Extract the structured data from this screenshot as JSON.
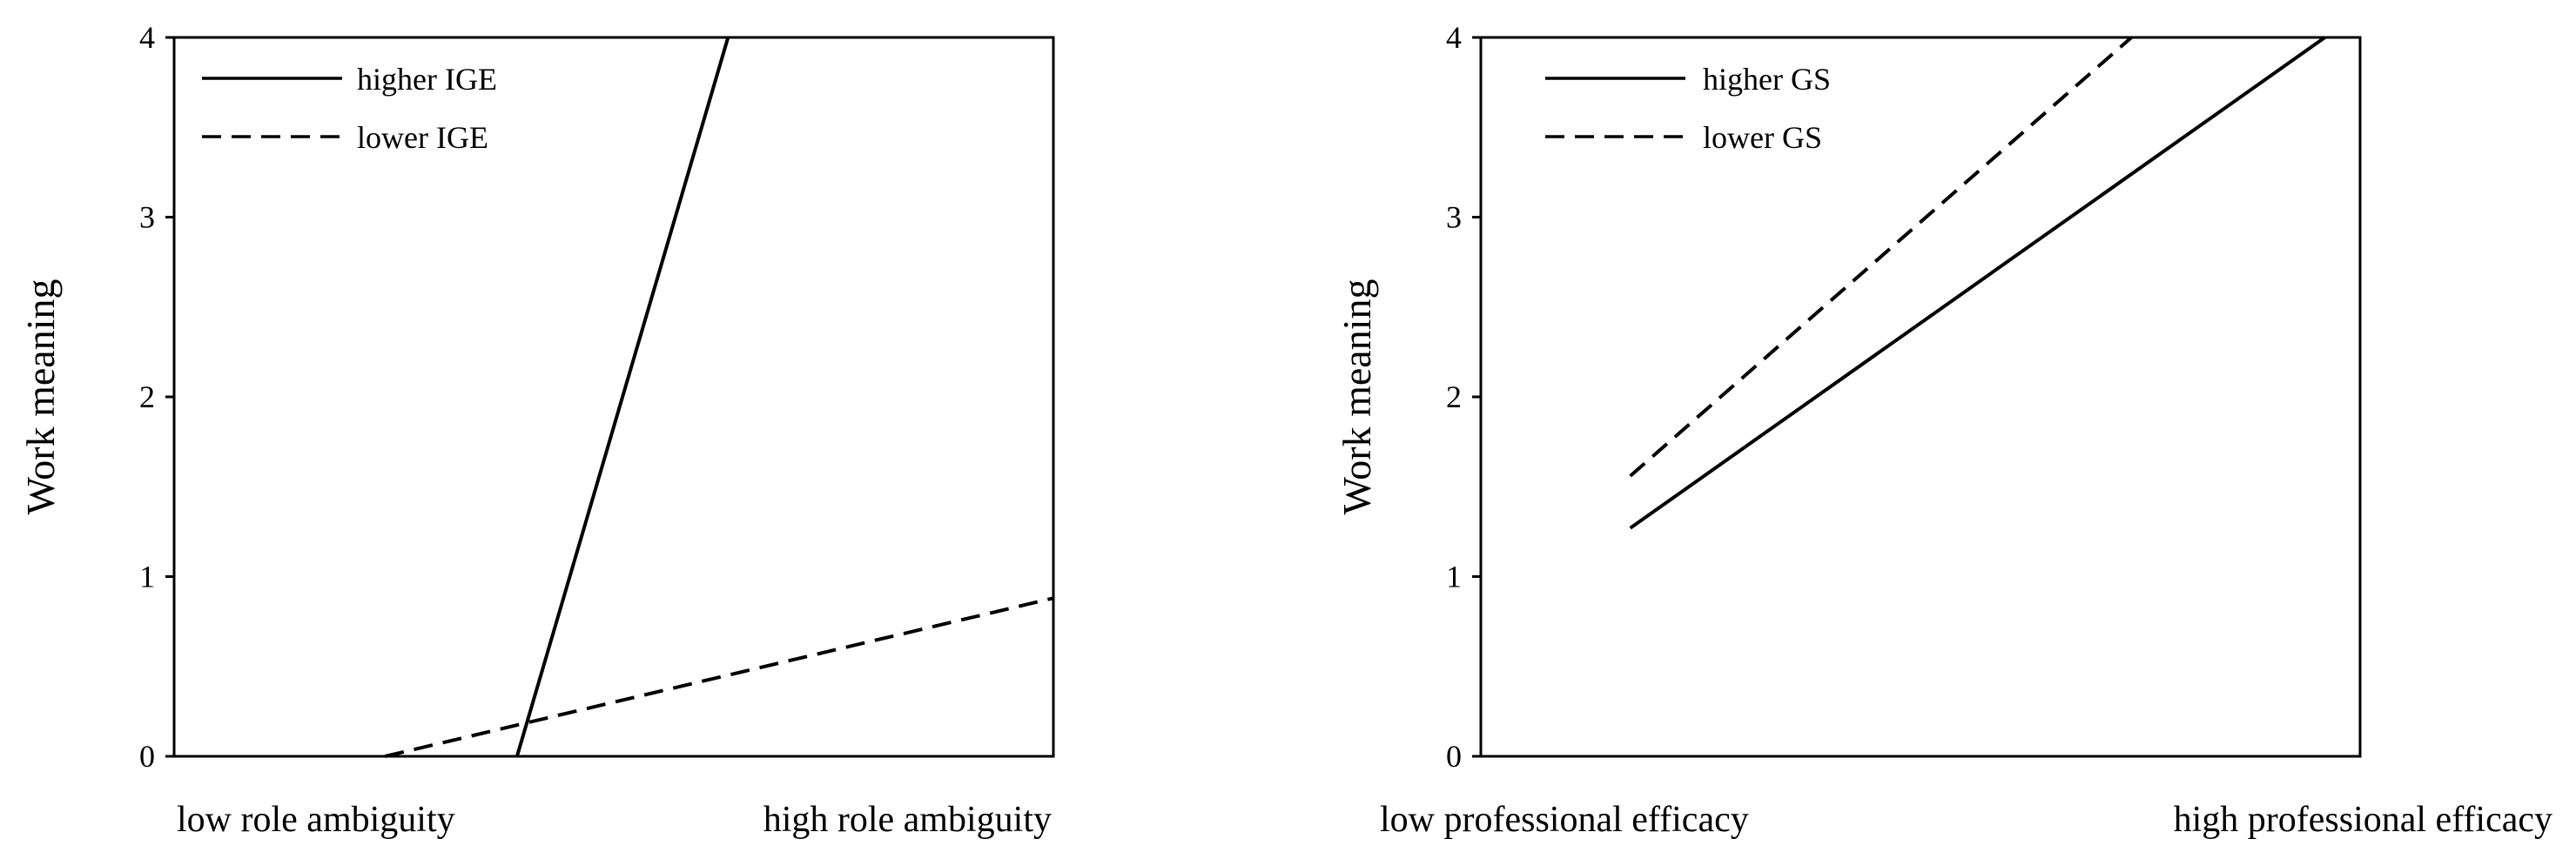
{
  "chart_data": [
    {
      "type": "line",
      "ylabel": "Work meaning",
      "ylim": [
        0,
        4
      ],
      "yticks": [
        "0",
        "1",
        "2",
        "3",
        "4"
      ],
      "categories": [
        "low role ambiguity",
        "high role ambiguity"
      ],
      "legend_position": "top-left",
      "series": [
        {
          "name": "higher IGE",
          "style": "solid",
          "points": [
            [
              0.39,
              0.0
            ],
            [
              0.63,
              4.0
            ]
          ]
        },
        {
          "name": "lower IGE",
          "style": "dashed",
          "points": [
            [
              0.24,
              0.0
            ],
            [
              1.0,
              0.88
            ]
          ]
        }
      ]
    },
    {
      "type": "line",
      "ylabel": "Work meaning",
      "ylim": [
        0,
        4
      ],
      "yticks": [
        "0",
        "1",
        "2",
        "3",
        "4"
      ],
      "categories": [
        "low professional efficacy",
        "high professional efficacy"
      ],
      "legend_position": "top-left",
      "series": [
        {
          "name": "higher GS",
          "style": "solid",
          "points": [
            [
              0.17,
              1.27
            ],
            [
              0.96,
              4.0
            ]
          ]
        },
        {
          "name": "lower GS",
          "style": "dashed",
          "points": [
            [
              0.17,
              1.56
            ],
            [
              0.74,
              4.0
            ]
          ]
        }
      ]
    }
  ]
}
